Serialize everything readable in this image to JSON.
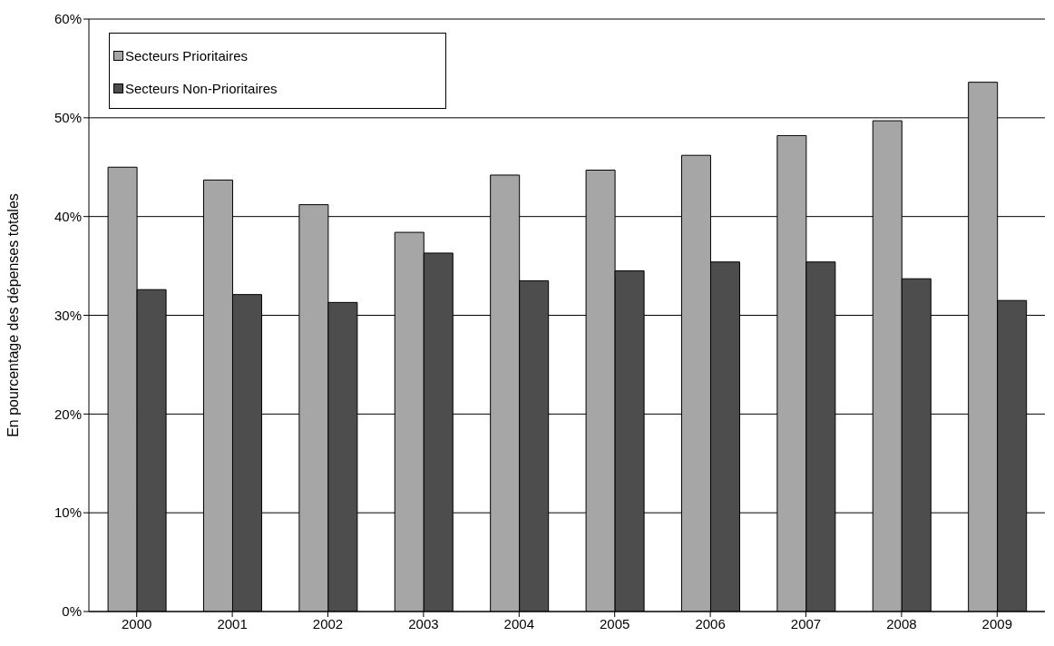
{
  "chart_data": {
    "type": "bar",
    "ylabel": "En pourcentage  des  dépenses  totales",
    "categories": [
      "2000",
      "2001",
      "2002",
      "2003",
      "2004",
      "2005",
      "2006",
      "2007",
      "2008",
      "2009"
    ],
    "series": [
      {
        "name": "Secteurs Prioritaires",
        "color": "#a6a6a6",
        "values": [
          45.0,
          43.7,
          41.2,
          38.4,
          44.2,
          44.7,
          46.2,
          48.2,
          49.7,
          53.6
        ]
      },
      {
        "name": "Secteurs Non-Prioritaires",
        "color": "#4d4d4d",
        "values": [
          32.6,
          32.1,
          31.3,
          36.3,
          33.5,
          34.5,
          35.4,
          35.4,
          33.7,
          31.5
        ]
      }
    ],
    "ylim": [
      0,
      60
    ],
    "yticks": [
      {
        "value": 0,
        "label": "0%"
      },
      {
        "value": 10,
        "label": "10%"
      },
      {
        "value": 20,
        "label": "20%"
      },
      {
        "value": 30,
        "label": "30%"
      },
      {
        "value": 40,
        "label": "40%"
      },
      {
        "value": 50,
        "label": "50%"
      },
      {
        "value": 60,
        "label": "60%"
      }
    ],
    "grid": "y",
    "legend": "top left"
  }
}
